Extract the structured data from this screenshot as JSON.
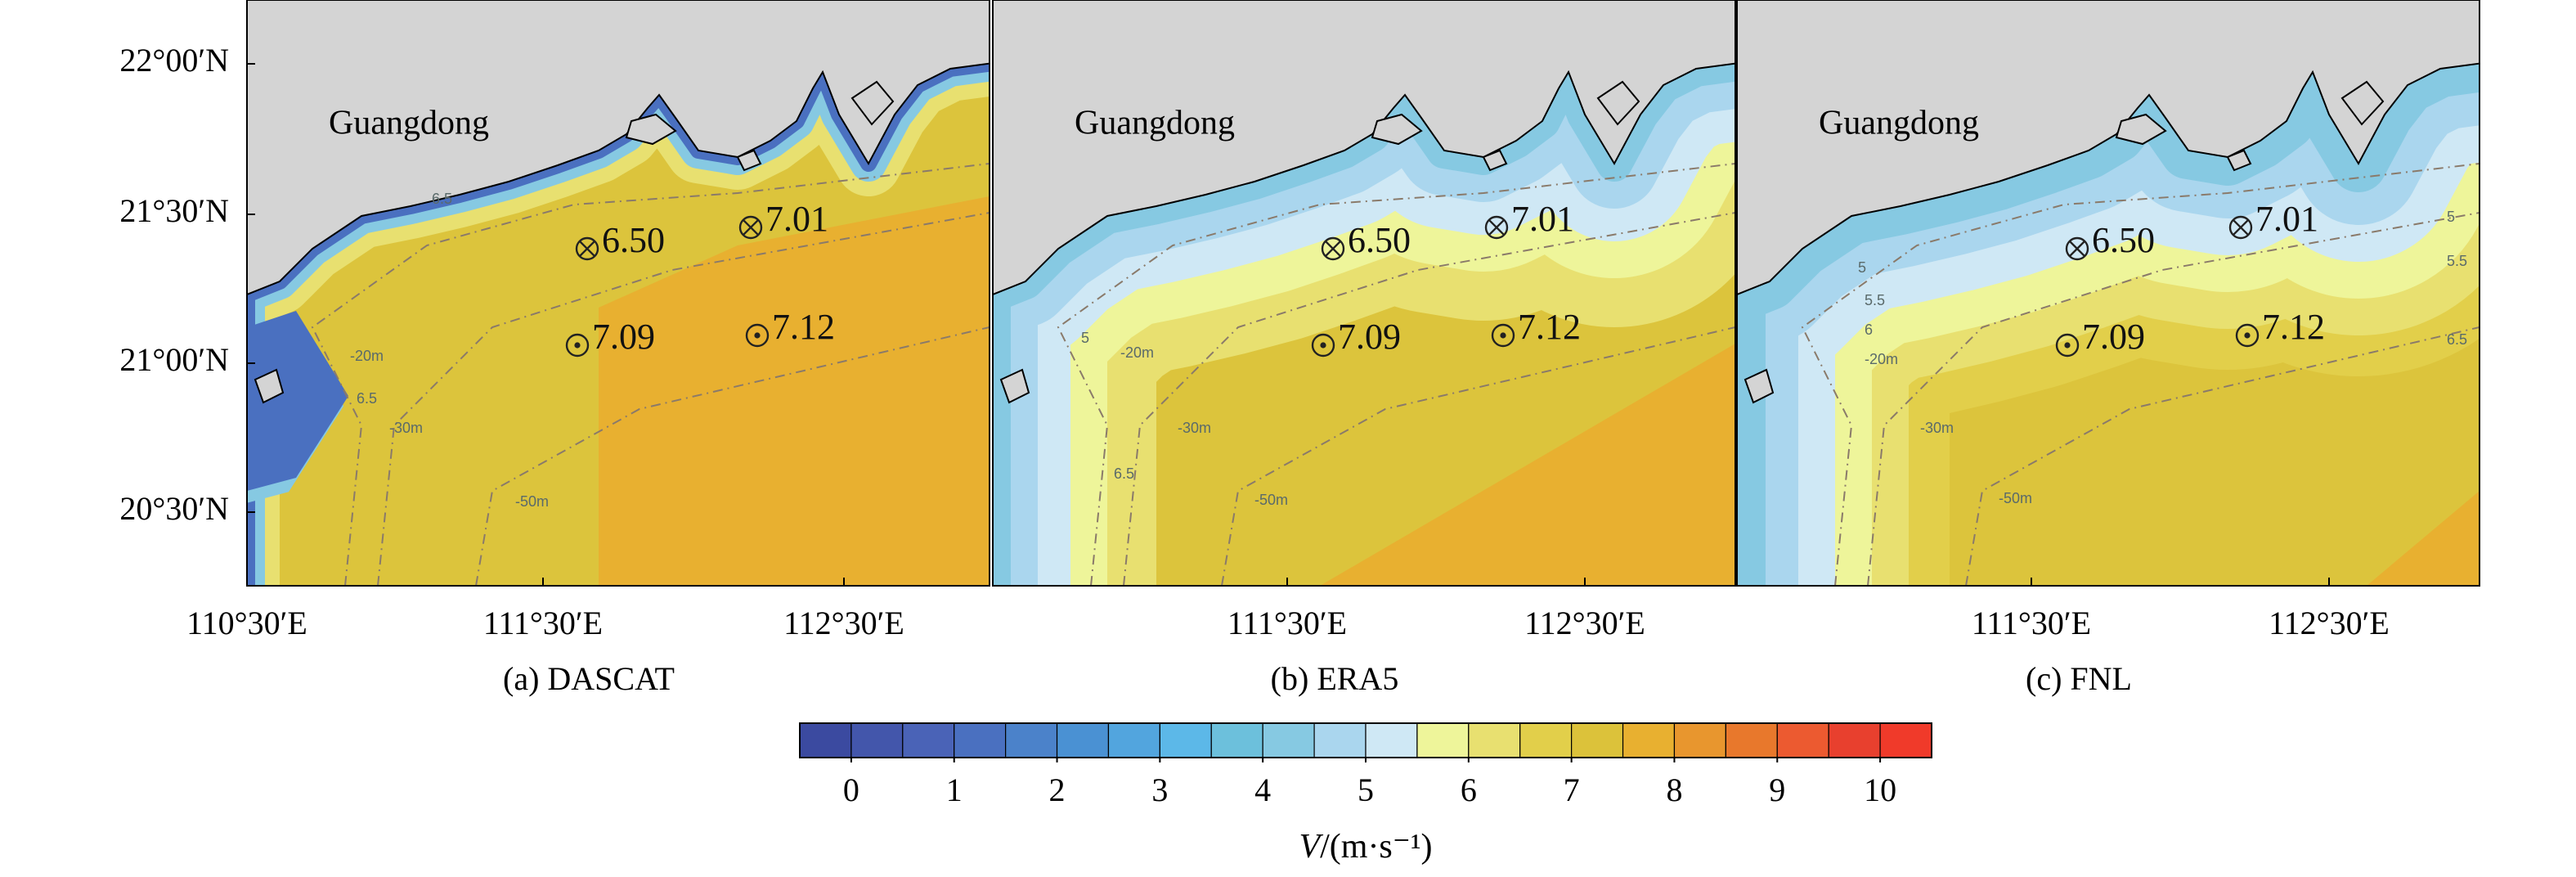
{
  "axes": {
    "yticklabels": [
      "22°00′N",
      "21°30′N",
      "21°00′N",
      "20°30′N"
    ]
  },
  "panels": [
    {
      "title": "(a) DASCAT",
      "land_label": "Guangdong",
      "xticklabels": [
        "110°30′E",
        "111°30′E",
        "112°30′E"
      ],
      "stations": [
        {
          "label": "6.50",
          "marker": "cross"
        },
        {
          "label": "7.01",
          "marker": "cross"
        },
        {
          "label": "7.09",
          "marker": "dot"
        },
        {
          "label": "7.12",
          "marker": "dot"
        }
      ],
      "contour_labels": [
        "6.5",
        "-20m",
        "6.5",
        "-30m",
        "-50m"
      ]
    },
    {
      "title": "(b) ERA5",
      "land_label": "Guangdong",
      "xticklabels": [
        "111°30′E",
        "112°30′E"
      ],
      "stations": [
        {
          "label": "6.50",
          "marker": "cross"
        },
        {
          "label": "7.01",
          "marker": "cross"
        },
        {
          "label": "7.09",
          "marker": "dot"
        },
        {
          "label": "7.12",
          "marker": "dot"
        }
      ],
      "contour_labels": [
        "5",
        "-20m",
        "-30m",
        "6.5",
        "-50m"
      ]
    },
    {
      "title": "(c) FNL",
      "land_label": "Guangdong",
      "xticklabels": [
        "111°30′E",
        "112°30′E"
      ],
      "stations": [
        {
          "label": "6.50",
          "marker": "cross"
        },
        {
          "label": "7.01",
          "marker": "cross"
        },
        {
          "label": "7.09",
          "marker": "dot"
        },
        {
          "label": "7.12",
          "marker": "dot"
        }
      ],
      "contour_labels": [
        "5",
        "5.5",
        "6",
        "-20m",
        "-30m",
        "-50m",
        "5",
        "5.5",
        "6.5"
      ]
    }
  ],
  "colorbar": {
    "lim": [
      -0.5,
      10.5
    ],
    "ticks": [
      0,
      1,
      2,
      3,
      4,
      5,
      6,
      7,
      8,
      9,
      10
    ],
    "colors": [
      "#3b4aa0",
      "#4356ab",
      "#4a63b7",
      "#4a70c0",
      "#4b82ca",
      "#4a91d3",
      "#52a5de",
      "#5cb8e8",
      "#6cc0dc",
      "#86c9e2",
      "#aad6ee",
      "#cfe8f5",
      "#eef59a",
      "#e8e070",
      "#e2cf4a",
      "#dcc23a",
      "#e8b030",
      "#e8962e",
      "#e8782c",
      "#ec5a30",
      "#e8402e",
      "#f03a2a"
    ],
    "label_symbol": "V",
    "label_unit": "/(m·s⁻¹)"
  }
}
